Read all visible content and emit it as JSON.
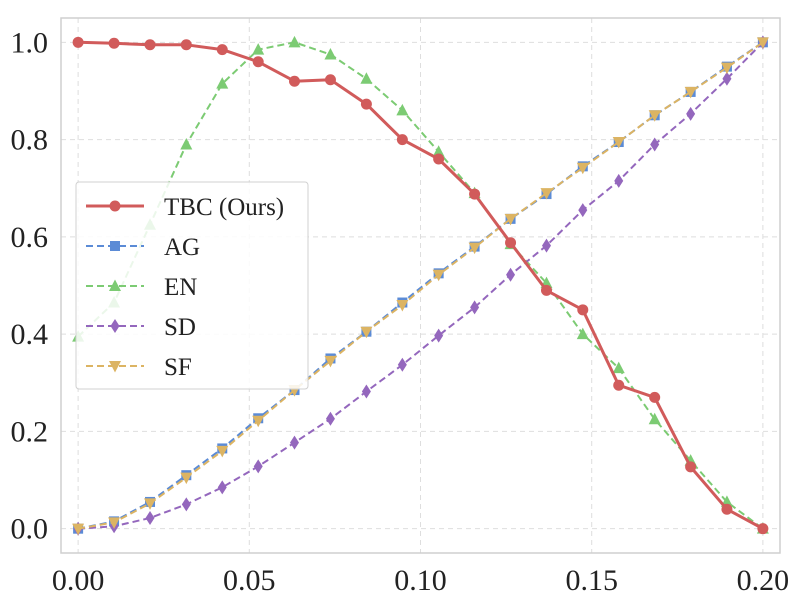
{
  "chart_data": {
    "type": "line",
    "title": "",
    "xlabel": "",
    "ylabel": "",
    "xlim": [
      -0.005,
      0.205
    ],
    "ylim": [
      -0.05,
      1.05
    ],
    "x_ticks": [
      0.0,
      0.05,
      0.1,
      0.15,
      0.2
    ],
    "x_tick_labels": [
      "0.00",
      "0.05",
      "0.10",
      "0.15",
      "0.20"
    ],
    "y_ticks": [
      0.0,
      0.2,
      0.4,
      0.6,
      0.8,
      1.0
    ],
    "y_tick_labels": [
      "0.0",
      "0.2",
      "0.4",
      "0.6",
      "0.8",
      "1.0"
    ],
    "grid": true,
    "legend_position": "center-left",
    "x": [
      0.0,
      0.0105,
      0.021,
      0.0316,
      0.0421,
      0.0526,
      0.0632,
      0.0737,
      0.0842,
      0.0947,
      0.1053,
      0.1158,
      0.1263,
      0.1368,
      0.1474,
      0.1579,
      0.1684,
      0.1789,
      0.1895,
      0.2
    ],
    "series": [
      {
        "name": "TBC (Ours)",
        "color": "#d15b5b",
        "marker": "circle",
        "dashed": false,
        "values": [
          1.0,
          0.998,
          0.995,
          0.995,
          0.985,
          0.96,
          0.92,
          0.923,
          0.873,
          0.8,
          0.76,
          0.688,
          0.588,
          0.49,
          0.45,
          0.295,
          0.27,
          0.127,
          0.04,
          0.0
        ]
      },
      {
        "name": "AG",
        "color": "#5b8bd6",
        "marker": "square",
        "dashed": true,
        "values": [
          0.0,
          0.015,
          0.055,
          0.11,
          0.165,
          0.227,
          0.285,
          0.35,
          0.405,
          0.465,
          0.525,
          0.58,
          0.637,
          0.688,
          0.745,
          0.795,
          0.85,
          0.898,
          0.95,
          1.0
        ]
      },
      {
        "name": "EN",
        "color": "#7ccb73",
        "marker": "triangle-up",
        "dashed": true,
        "values": [
          0.395,
          0.465,
          0.625,
          0.79,
          0.915,
          0.985,
          1.0,
          0.975,
          0.925,
          0.86,
          0.775,
          0.69,
          0.585,
          0.505,
          0.4,
          0.33,
          0.225,
          0.14,
          0.055,
          0.0
        ]
      },
      {
        "name": "SD",
        "color": "#9467bd",
        "marker": "diamond",
        "dashed": true,
        "values": [
          0.0,
          0.005,
          0.022,
          0.05,
          0.085,
          0.128,
          0.177,
          0.226,
          0.282,
          0.337,
          0.397,
          0.455,
          0.522,
          0.582,
          0.655,
          0.715,
          0.79,
          0.853,
          0.925,
          1.0
        ]
      },
      {
        "name": "SF",
        "color": "#dcb463",
        "marker": "triangle-down",
        "dashed": true,
        "values": [
          0.0,
          0.013,
          0.052,
          0.105,
          0.16,
          0.222,
          0.285,
          0.345,
          0.405,
          0.46,
          0.522,
          0.578,
          0.637,
          0.69,
          0.742,
          0.795,
          0.85,
          0.898,
          0.948,
          1.0
        ]
      }
    ]
  }
}
